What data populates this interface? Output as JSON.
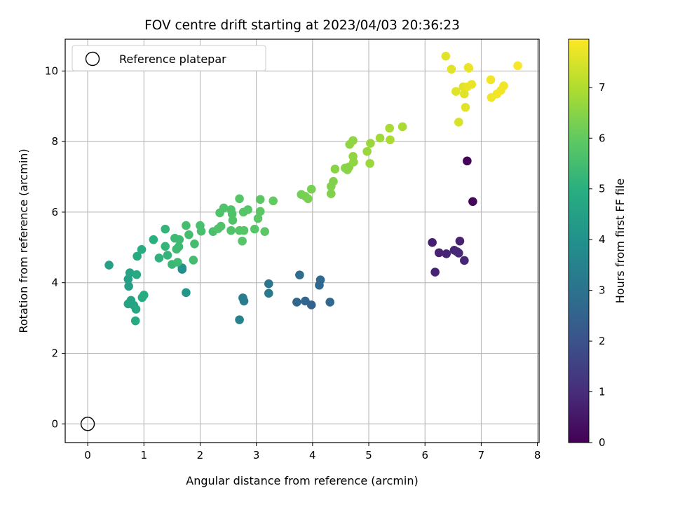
{
  "chart_data": {
    "type": "scatter",
    "title": "FOV centre drift starting at 2023/04/03 20:36:23",
    "xlabel": "Angular distance from reference (arcmin)",
    "ylabel": "Rotation from reference (arcmin)",
    "xlim": [
      -0.4,
      8.03
    ],
    "ylim": [
      -0.53,
      10.9
    ],
    "xticks": [
      0,
      1,
      2,
      3,
      4,
      5,
      6,
      7,
      8
    ],
    "yticks": [
      0,
      2,
      4,
      6,
      8,
      10
    ],
    "grid": true,
    "legend": {
      "placement": "top-left",
      "entries": [
        "Reference platepar"
      ]
    },
    "reference_point": {
      "x": 0,
      "y": 0,
      "label": "Reference platepar"
    },
    "colorbar": {
      "label": "Hours from first FF file",
      "range": [
        0,
        7.95
      ],
      "ticks": [
        0,
        1,
        2,
        3,
        4,
        5,
        6,
        7
      ],
      "colormap": "viridis"
    },
    "points": [
      [
        6.75,
        7.45,
        0.1
      ],
      [
        6.85,
        6.3,
        0.15
      ],
      [
        6.13,
        5.14,
        0.7
      ],
      [
        6.18,
        4.3,
        0.8
      ],
      [
        6.25,
        4.85,
        0.75
      ],
      [
        6.38,
        4.82,
        0.8
      ],
      [
        6.52,
        4.92,
        0.85
      ],
      [
        6.57,
        4.88,
        0.9
      ],
      [
        6.6,
        4.84,
        0.9
      ],
      [
        6.62,
        5.18,
        0.75
      ],
      [
        6.7,
        4.63,
        0.85
      ],
      [
        3.77,
        4.22,
        2.8
      ],
      [
        3.72,
        3.45,
        2.6
      ],
      [
        3.87,
        3.48,
        2.6
      ],
      [
        3.98,
        3.37,
        2.5
      ],
      [
        4.12,
        3.93,
        2.7
      ],
      [
        4.14,
        4.08,
        2.7
      ],
      [
        4.31,
        3.45,
        2.7
      ],
      [
        3.22,
        3.97,
        3.1
      ],
      [
        3.22,
        3.7,
        3.2
      ],
      [
        2.76,
        3.57,
        3.3
      ],
      [
        2.78,
        3.48,
        3.3
      ],
      [
        2.7,
        2.95,
        3.5
      ],
      [
        1.68,
        4.38,
        3.6
      ],
      [
        1.75,
        3.72,
        4.2
      ],
      [
        1.68,
        4.42,
        4.0
      ],
      [
        0.38,
        4.5,
        4.5
      ],
      [
        0.72,
        4.1,
        4.5
      ],
      [
        0.73,
        3.9,
        4.5
      ],
      [
        0.75,
        4.28,
        4.6
      ],
      [
        0.72,
        3.4,
        4.6
      ],
      [
        0.77,
        3.5,
        4.6
      ],
      [
        0.82,
        3.36,
        4.6
      ],
      [
        0.86,
        3.25,
        4.7
      ],
      [
        0.85,
        2.92,
        4.8
      ],
      [
        0.87,
        4.23,
        4.8
      ],
      [
        0.88,
        4.75,
        4.8
      ],
      [
        0.96,
        4.94,
        4.9
      ],
      [
        0.97,
        3.58,
        4.9
      ],
      [
        1.0,
        3.65,
        4.9
      ],
      [
        1.17,
        5.22,
        5.0
      ],
      [
        1.27,
        4.7,
        5.1
      ],
      [
        1.38,
        5.52,
        5.2
      ],
      [
        1.38,
        5.03,
        5.2
      ],
      [
        1.42,
        4.78,
        5.2
      ],
      [
        1.5,
        4.52,
        5.3
      ],
      [
        1.55,
        5.26,
        5.4
      ],
      [
        1.58,
        4.95,
        5.4
      ],
      [
        1.6,
        4.58,
        5.4
      ],
      [
        1.62,
        5.02,
        5.4
      ],
      [
        1.63,
        5.22,
        5.4
      ],
      [
        1.75,
        5.62,
        5.5
      ],
      [
        1.8,
        5.36,
        5.5
      ],
      [
        1.88,
        4.64,
        5.5
      ],
      [
        1.9,
        5.1,
        5.5
      ],
      [
        2.0,
        5.62,
        5.6
      ],
      [
        2.02,
        5.46,
        5.6
      ],
      [
        2.23,
        5.45,
        5.6
      ],
      [
        2.32,
        5.53,
        5.7
      ],
      [
        2.35,
        5.98,
        5.7
      ],
      [
        2.37,
        5.6,
        5.7
      ],
      [
        2.42,
        6.12,
        5.7
      ],
      [
        2.55,
        5.48,
        5.7
      ],
      [
        2.55,
        6.07,
        5.7
      ],
      [
        2.57,
        5.95,
        5.7
      ],
      [
        2.58,
        5.77,
        5.7
      ],
      [
        2.7,
        6.38,
        5.8
      ],
      [
        2.7,
        5.48,
        5.8
      ],
      [
        2.75,
        5.18,
        5.8
      ],
      [
        2.77,
        6.0,
        5.8
      ],
      [
        2.78,
        5.48,
        5.8
      ],
      [
        2.85,
        6.07,
        5.8
      ],
      [
        2.97,
        5.52,
        5.8
      ],
      [
        3.03,
        5.82,
        5.9
      ],
      [
        3.07,
        6.36,
        5.9
      ],
      [
        3.07,
        6.02,
        5.9
      ],
      [
        3.15,
        5.45,
        5.9
      ],
      [
        3.3,
        6.32,
        6.0
      ],
      [
        3.8,
        6.5,
        6.2
      ],
      [
        3.87,
        6.45,
        6.3
      ],
      [
        3.92,
        6.38,
        6.3
      ],
      [
        3.98,
        6.65,
        6.3
      ],
      [
        4.33,
        6.52,
        6.4
      ],
      [
        4.33,
        6.73,
        6.4
      ],
      [
        4.37,
        6.87,
        6.4
      ],
      [
        4.4,
        7.22,
        6.5
      ],
      [
        4.58,
        7.25,
        6.5
      ],
      [
        4.62,
        7.2,
        6.5
      ],
      [
        4.65,
        7.28,
        6.5
      ],
      [
        4.66,
        7.92,
        6.6
      ],
      [
        4.72,
        8.03,
        6.6
      ],
      [
        4.72,
        7.58,
        6.6
      ],
      [
        4.73,
        7.42,
        6.6
      ],
      [
        4.97,
        7.72,
        6.7
      ],
      [
        5.02,
        7.38,
        6.7
      ],
      [
        5.03,
        7.95,
        6.7
      ],
      [
        5.2,
        8.1,
        6.8
      ],
      [
        5.37,
        8.38,
        6.9
      ],
      [
        5.38,
        8.05,
        6.9
      ],
      [
        5.6,
        8.42,
        6.9
      ],
      [
        6.37,
        10.42,
        7.6
      ],
      [
        6.47,
        10.05,
        7.6
      ],
      [
        6.55,
        9.42,
        7.6
      ],
      [
        6.6,
        8.55,
        7.5
      ],
      [
        6.68,
        9.55,
        7.6
      ],
      [
        6.7,
        9.35,
        7.6
      ],
      [
        6.72,
        8.97,
        7.6
      ],
      [
        6.75,
        9.55,
        7.7
      ],
      [
        6.77,
        10.1,
        7.7
      ],
      [
        6.78,
        10.08,
        7.7
      ],
      [
        6.83,
        9.62,
        7.7
      ],
      [
        7.17,
        9.75,
        7.8
      ],
      [
        7.18,
        9.25,
        7.8
      ],
      [
        7.28,
        9.35,
        7.8
      ],
      [
        7.35,
        9.45,
        7.8
      ],
      [
        7.4,
        9.58,
        7.8
      ],
      [
        7.65,
        10.15,
        7.9
      ]
    ]
  }
}
